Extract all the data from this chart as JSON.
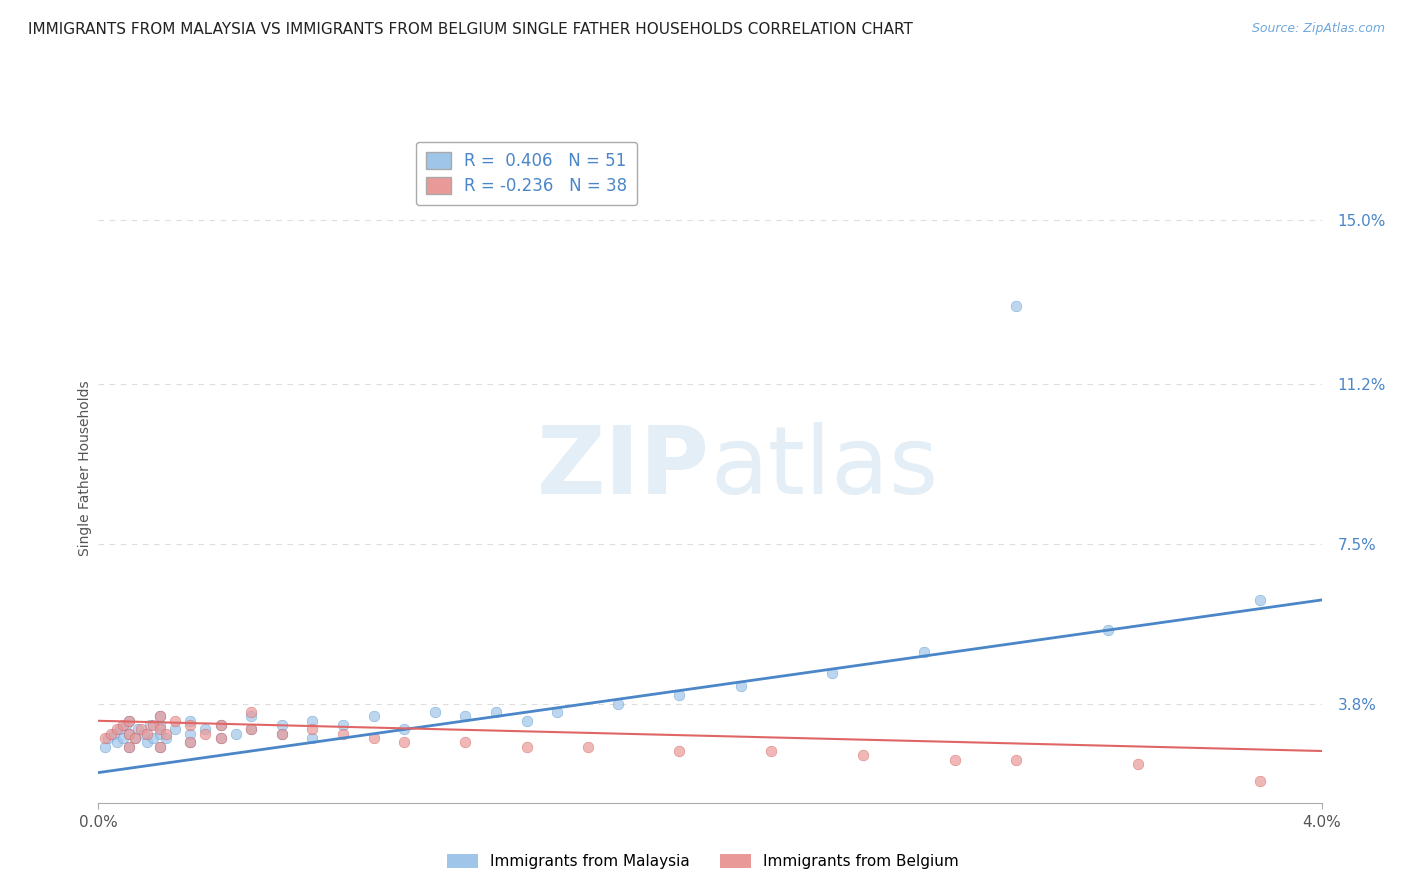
{
  "title": "IMMIGRANTS FROM MALAYSIA VS IMMIGRANTS FROM BELGIUM SINGLE FATHER HOUSEHOLDS CORRELATION CHART",
  "source": "Source: ZipAtlas.com",
  "ylabel": "Single Father Households",
  "ytick_labels": [
    "3.8%",
    "7.5%",
    "11.2%",
    "15.0%"
  ],
  "ytick_values": [
    0.038,
    0.075,
    0.112,
    0.15
  ],
  "xlim": [
    0.0,
    0.04
  ],
  "ylim": [
    0.015,
    0.17
  ],
  "legend_malaysia": "R =  0.406   N = 51",
  "legend_belgium": "R = -0.236   N = 38",
  "color_malaysia": "#9fc5e8",
  "color_belgium": "#ea9999",
  "color_malaysia_dark": "#3d85c8",
  "color_belgium_dark": "#cc4444",
  "color_malaysia_line": "#4a86c8",
  "color_belgium_line": "#e06666",
  "watermark": "ZIPatlas",
  "malaysia_scatter_x": [
    0.0002,
    0.0003,
    0.0005,
    0.0006,
    0.0007,
    0.0008,
    0.0009,
    0.001,
    0.001,
    0.001,
    0.0012,
    0.0013,
    0.0015,
    0.0016,
    0.0017,
    0.0018,
    0.002,
    0.002,
    0.002,
    0.002,
    0.0022,
    0.0025,
    0.003,
    0.003,
    0.003,
    0.0035,
    0.004,
    0.004,
    0.0045,
    0.005,
    0.005,
    0.006,
    0.006,
    0.007,
    0.007,
    0.008,
    0.009,
    0.01,
    0.011,
    0.012,
    0.013,
    0.014,
    0.015,
    0.017,
    0.019,
    0.021,
    0.024,
    0.027,
    0.03,
    0.033,
    0.038
  ],
  "malaysia_scatter_y": [
    0.028,
    0.03,
    0.031,
    0.029,
    0.032,
    0.03,
    0.033,
    0.028,
    0.031,
    0.034,
    0.03,
    0.032,
    0.031,
    0.029,
    0.033,
    0.03,
    0.028,
    0.031,
    0.033,
    0.035,
    0.03,
    0.032,
    0.029,
    0.031,
    0.034,
    0.032,
    0.03,
    0.033,
    0.031,
    0.032,
    0.035,
    0.031,
    0.033,
    0.03,
    0.034,
    0.033,
    0.035,
    0.032,
    0.036,
    0.035,
    0.036,
    0.034,
    0.036,
    0.038,
    0.04,
    0.042,
    0.045,
    0.05,
    0.13,
    0.055,
    0.062
  ],
  "belgium_scatter_x": [
    0.0002,
    0.0004,
    0.0006,
    0.0008,
    0.001,
    0.001,
    0.001,
    0.0012,
    0.0014,
    0.0016,
    0.0018,
    0.002,
    0.002,
    0.002,
    0.0022,
    0.0025,
    0.003,
    0.003,
    0.0035,
    0.004,
    0.004,
    0.005,
    0.005,
    0.006,
    0.007,
    0.008,
    0.009,
    0.01,
    0.012,
    0.014,
    0.016,
    0.019,
    0.022,
    0.025,
    0.028,
    0.03,
    0.034,
    0.038
  ],
  "belgium_scatter_y": [
    0.03,
    0.031,
    0.032,
    0.033,
    0.028,
    0.031,
    0.034,
    0.03,
    0.032,
    0.031,
    0.033,
    0.028,
    0.032,
    0.035,
    0.031,
    0.034,
    0.029,
    0.033,
    0.031,
    0.03,
    0.033,
    0.032,
    0.036,
    0.031,
    0.032,
    0.031,
    0.03,
    0.029,
    0.029,
    0.028,
    0.028,
    0.027,
    0.027,
    0.026,
    0.025,
    0.025,
    0.024,
    0.02
  ],
  "malaysia_line_x": [
    0.0,
    0.04
  ],
  "malaysia_line_y": [
    0.022,
    0.062
  ],
  "belgium_line_x": [
    0.0,
    0.04
  ],
  "belgium_line_y": [
    0.034,
    0.027
  ],
  "grid_color": "#dddddd",
  "background_color": "#ffffff",
  "title_fontsize": 11,
  "axis_label_fontsize": 10,
  "tick_fontsize": 11,
  "legend_fontsize": 12
}
